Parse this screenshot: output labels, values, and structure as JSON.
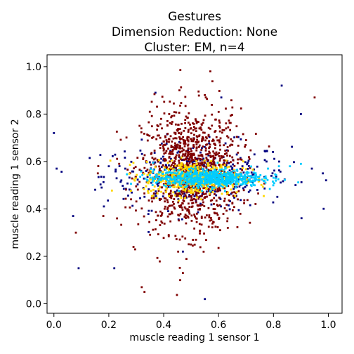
{
  "chart_data": {
    "type": "scatter",
    "title_lines": [
      "Gestures",
      "Dimension Reduction: None",
      "Cluster: EM, n=4"
    ],
    "xlabel": "muscle reading 1 sensor 1",
    "ylabel": "muscle reading 1 sensor 2",
    "xlim": [
      -0.025,
      1.05
    ],
    "ylim": [
      -0.04,
      1.05
    ],
    "xticks": [
      0.0,
      0.2,
      0.4,
      0.6,
      0.8,
      1.0
    ],
    "xtick_labels": [
      "0.0",
      "0.2",
      "0.4",
      "0.6",
      "0.8",
      "1.0"
    ],
    "yticks": [
      0.0,
      0.2,
      0.4,
      0.6,
      0.8,
      1.0
    ],
    "ytick_labels": [
      "0.0",
      "0.2",
      "0.4",
      "0.6",
      "0.8",
      "1.0"
    ],
    "grid": false,
    "legend": "none",
    "clusters": [
      {
        "color": "#000080",
        "center": [
          0.52,
          0.54
        ],
        "spread": [
          0.17,
          0.07
        ],
        "count": 360,
        "extra_points": [
          [
            0.0,
            0.72
          ],
          [
            0.01,
            0.57
          ],
          [
            0.09,
            0.15
          ],
          [
            0.07,
            0.37
          ],
          [
            0.83,
            0.92
          ],
          [
            0.61,
            0.87
          ],
          [
            0.98,
            0.55
          ],
          [
            0.94,
            0.57
          ],
          [
            0.9,
            0.8
          ],
          [
            0.2,
            0.58
          ],
          [
            0.26,
            0.57
          ],
          [
            0.22,
            0.15
          ],
          [
            0.55,
            0.02
          ],
          [
            0.47,
            0.22
          ],
          [
            0.37,
            0.89
          ]
        ]
      },
      {
        "color": "#800000",
        "center": [
          0.5,
          0.56
        ],
        "spread": [
          0.09,
          0.13
        ],
        "count": 1100,
        "extra_points": [
          [
            0.95,
            0.87
          ],
          [
            0.65,
            0.67
          ],
          [
            0.08,
            0.3
          ],
          [
            0.32,
            0.07
          ],
          [
            0.33,
            0.05
          ],
          [
            0.57,
            0.98
          ],
          [
            0.42,
            0.8
          ],
          [
            0.55,
            0.88
          ],
          [
            0.46,
            0.1
          ],
          [
            0.47,
            0.13
          ],
          [
            0.16,
            0.55
          ],
          [
            0.18,
            0.37
          ],
          [
            0.23,
            0.36
          ],
          [
            0.29,
            0.24
          ]
        ]
      },
      {
        "color": "#ffd700",
        "center": [
          0.51,
          0.53
        ],
        "spread": [
          0.09,
          0.035
        ],
        "count": 500,
        "extra_points": []
      },
      {
        "color": "#00ccff",
        "center": [
          0.56,
          0.53
        ],
        "spread": [
          0.1,
          0.018
        ],
        "count": 650,
        "extra_points": [
          [
            0.82,
            0.58
          ],
          [
            0.86,
            0.58
          ],
          [
            0.9,
            0.59
          ],
          [
            0.78,
            0.57
          ],
          [
            0.36,
            0.52
          ],
          [
            0.34,
            0.52
          ]
        ]
      }
    ]
  }
}
